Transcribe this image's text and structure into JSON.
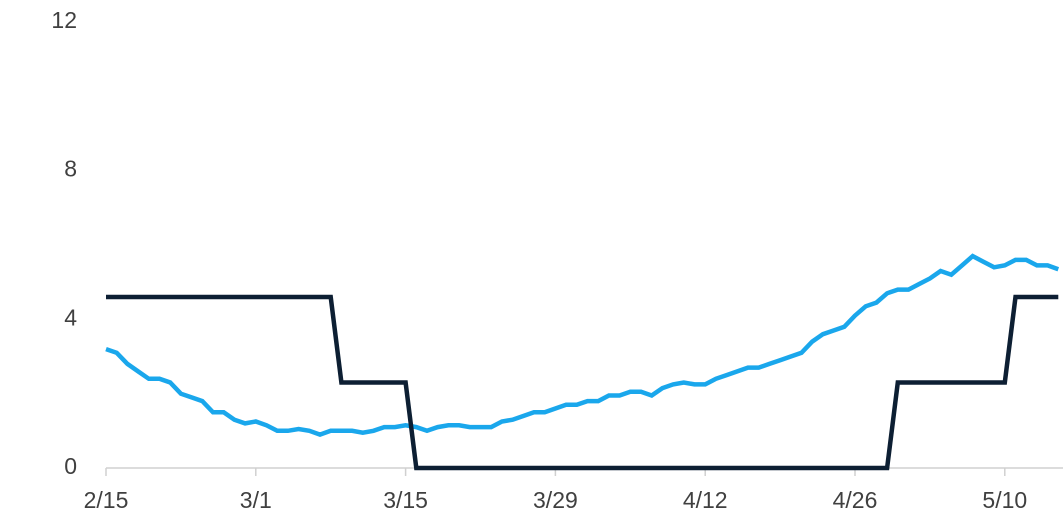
{
  "chart_data": {
    "type": "line",
    "categories": [
      "2/15",
      null,
      null,
      null,
      null,
      null,
      null,
      null,
      null,
      null,
      null,
      null,
      null,
      null,
      "3/1",
      null,
      null,
      null,
      null,
      null,
      null,
      null,
      null,
      null,
      null,
      null,
      null,
      null,
      "3/15",
      null,
      null,
      null,
      null,
      null,
      null,
      null,
      null,
      null,
      null,
      null,
      null,
      null,
      "3/29",
      null,
      null,
      null,
      null,
      null,
      null,
      null,
      null,
      null,
      null,
      null,
      null,
      null,
      "4/12",
      null,
      null,
      null,
      null,
      null,
      null,
      null,
      null,
      null,
      null,
      null,
      null,
      null,
      "4/26",
      null,
      null,
      null,
      null,
      null,
      null,
      null,
      null,
      null,
      null,
      null,
      null,
      null,
      "5/10",
      null,
      null,
      null,
      null,
      null
    ],
    "series": [
      {
        "color": "#1aa7ec",
        "values": [
          3.2,
          3.1,
          2.8,
          2.6,
          2.4,
          2.4,
          2.3,
          2.0,
          1.9,
          1.8,
          1.5,
          1.5,
          1.3,
          1.2,
          1.25,
          1.15,
          1.0,
          1.0,
          1.05,
          1.0,
          0.9,
          1.0,
          1.0,
          1.0,
          0.95,
          1.0,
          1.1,
          1.1,
          1.15,
          1.1,
          1.0,
          1.1,
          1.15,
          1.15,
          1.1,
          1.1,
          1.1,
          1.25,
          1.3,
          1.4,
          1.5,
          1.5,
          1.6,
          1.7,
          1.7,
          1.8,
          1.8,
          1.95,
          1.95,
          2.05,
          2.05,
          1.95,
          2.15,
          2.25,
          2.3,
          2.25,
          2.25,
          2.4,
          2.5,
          2.6,
          2.7,
          2.7,
          2.8,
          2.9,
          3.0,
          3.1,
          3.4,
          3.6,
          3.7,
          3.8,
          4.1,
          4.35,
          4.45,
          4.7,
          4.8,
          4.8,
          4.95,
          5.1,
          5.3,
          5.2,
          5.45,
          5.7,
          5.55,
          5.4,
          5.45,
          5.6,
          5.6,
          5.45,
          5.45,
          5.35
        ]
      },
      {
        "color": "#0d1f33",
        "values": [
          4.6,
          4.6,
          4.6,
          4.6,
          4.6,
          4.6,
          4.6,
          4.6,
          4.6,
          4.6,
          4.6,
          4.6,
          4.6,
          4.6,
          4.6,
          4.6,
          4.6,
          4.6,
          4.6,
          4.6,
          4.6,
          4.6,
          2.3,
          2.3,
          2.3,
          2.3,
          2.3,
          2.3,
          2.3,
          0,
          0,
          0,
          0,
          0,
          0,
          0,
          0,
          0,
          0,
          0,
          0,
          0,
          0,
          0,
          0,
          0,
          0,
          0,
          0,
          0,
          0,
          0,
          0,
          0,
          0,
          0,
          0,
          0,
          0,
          0,
          0,
          0,
          0,
          0,
          0,
          0,
          0,
          0,
          0,
          0,
          0,
          0,
          0,
          0,
          2.3,
          2.3,
          2.3,
          2.3,
          2.3,
          2.3,
          2.3,
          2.3,
          2.3,
          2.3,
          2.3,
          4.6,
          4.6,
          4.6,
          4.6,
          4.6
        ]
      }
    ],
    "ylim": [
      0,
      12
    ],
    "yticks": [
      0,
      4,
      8,
      12
    ],
    "grid": false
  }
}
